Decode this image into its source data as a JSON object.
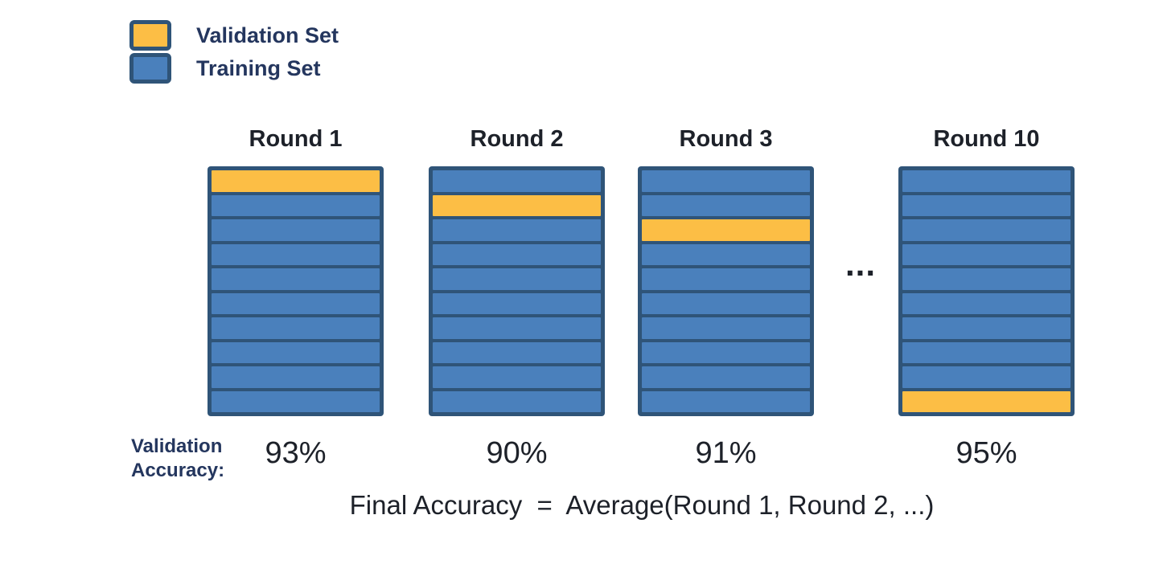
{
  "legend": {
    "items": [
      {
        "label": "Validation Set"
      },
      {
        "label": "Training Set"
      }
    ]
  },
  "rounds": [
    {
      "title": "Round 1",
      "num_folds": 10,
      "validation_fold": 1,
      "accuracy": "93%"
    },
    {
      "title": "Round 2",
      "num_folds": 10,
      "validation_fold": 2,
      "accuracy": "90%"
    },
    {
      "title": "Round 3",
      "num_folds": 10,
      "validation_fold": 3,
      "accuracy": "91%"
    },
    {
      "title": "Round 10",
      "num_folds": 10,
      "validation_fold": 10,
      "accuracy": "95%"
    }
  ],
  "ellipsis": "...",
  "validation_accuracy_label": "Validation\nAccuracy:",
  "formula": "Final Accuracy  =  Average(Round 1, Round 2, ...)",
  "colors": {
    "validation_fill": "#FCBE45",
    "training_fill": "#4A80BC",
    "outline": "#2F5478",
    "navy_text": "#24365E",
    "dark_text": "#1D2129",
    "background": "#FFFFFF"
  }
}
